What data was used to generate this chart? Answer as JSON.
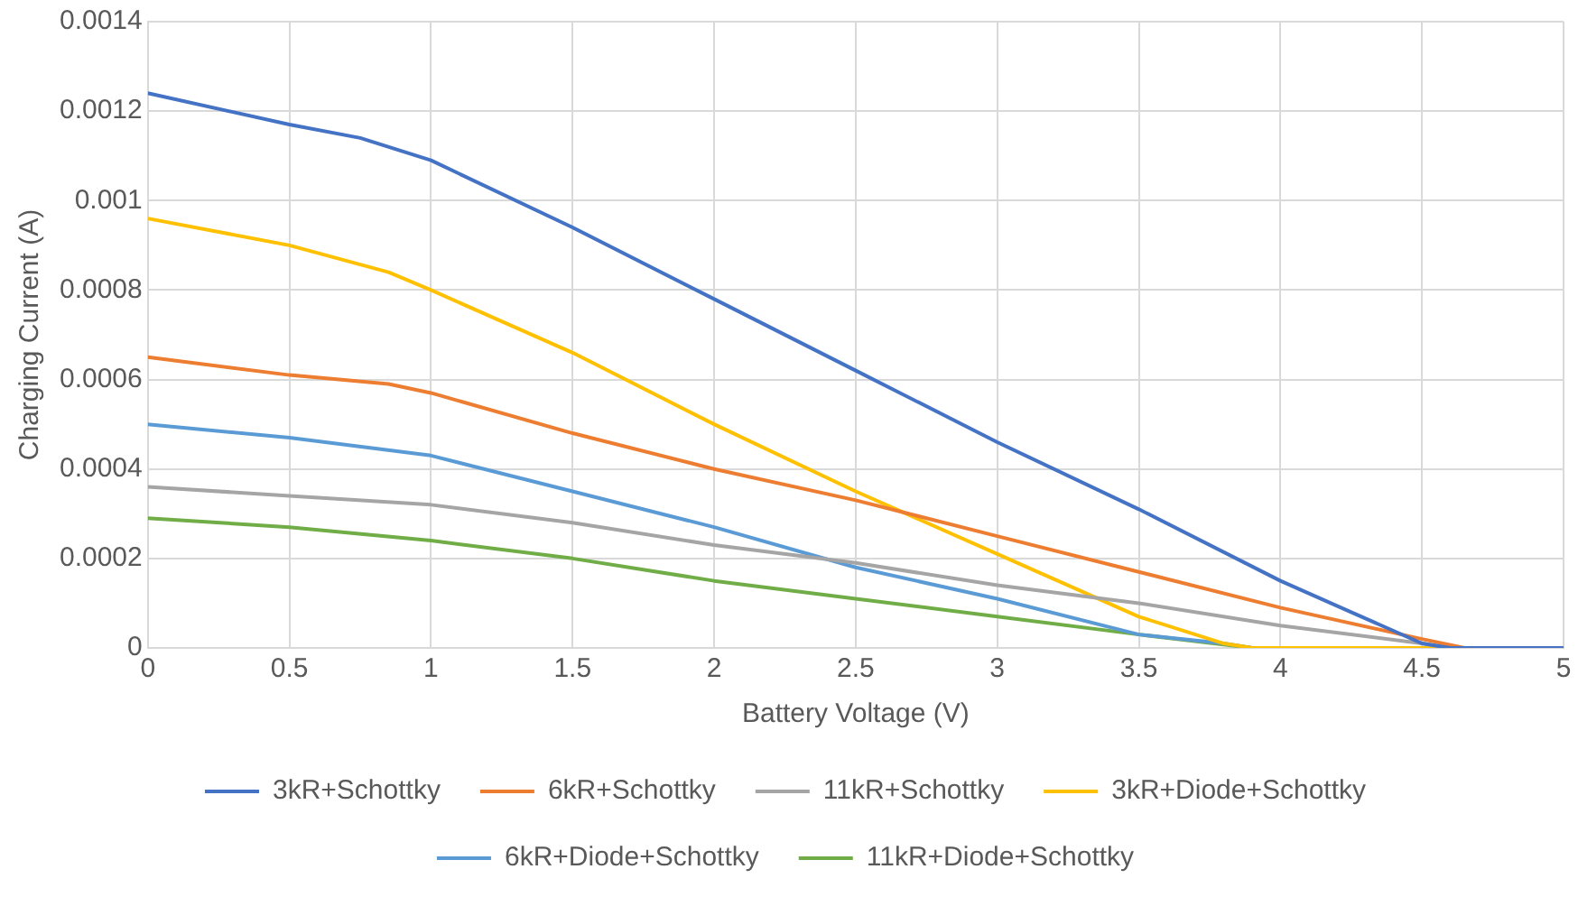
{
  "chart_data": {
    "type": "line",
    "xlabel": "Battery Voltage (V)",
    "ylabel": "Charging Current (A)",
    "xlim": [
      0,
      5
    ],
    "xticks": [
      0,
      0.5,
      1,
      1.5,
      2,
      2.5,
      3,
      3.5,
      4,
      4.5,
      5
    ],
    "ylim": [
      0,
      0.0014
    ],
    "yticks": [
      0,
      0.0002,
      0.0004,
      0.0006,
      0.0008,
      0.001,
      0.0012,
      0.0014
    ],
    "grid": true,
    "legend": "bottom",
    "marker": "none",
    "line_style": "solid",
    "series": [
      {
        "name": "3kR+Schottky",
        "color": "#4472c4",
        "x": [
          0,
          0.5,
          0.75,
          1,
          1.5,
          2,
          2.5,
          3,
          3.5,
          4,
          4.25,
          4.5,
          4.6,
          5
        ],
        "values": [
          0.00124,
          0.00117,
          0.00114,
          0.00109,
          0.00094,
          0.00078,
          0.00062,
          0.00046,
          0.00031,
          0.00015,
          8e-05,
          1e-05,
          0,
          0
        ]
      },
      {
        "name": "6kR+Schottky",
        "color": "#ed7d31",
        "x": [
          0,
          0.5,
          0.85,
          1,
          1.5,
          2,
          2.5,
          3,
          3.5,
          4,
          4.5,
          4.65,
          5
        ],
        "values": [
          0.00065,
          0.00061,
          0.00059,
          0.00057,
          0.00048,
          0.0004,
          0.00033,
          0.00025,
          0.00017,
          9e-05,
          2e-05,
          0,
          0
        ]
      },
      {
        "name": "11kR+Schottky",
        "color": "#a5a5a5",
        "x": [
          0,
          0.5,
          1,
          1.5,
          2,
          2.5,
          3,
          3.5,
          4,
          4.5,
          4.6,
          5
        ],
        "values": [
          0.00036,
          0.00034,
          0.00032,
          0.00028,
          0.00023,
          0.00019,
          0.00014,
          0.0001,
          5e-05,
          1e-05,
          0,
          0
        ]
      },
      {
        "name": "3kR+Diode+Schottky",
        "color": "#ffc000",
        "x": [
          0,
          0.5,
          0.85,
          1,
          1.5,
          2,
          2.5,
          3,
          3.5,
          3.8,
          3.9,
          5
        ],
        "values": [
          0.00096,
          0.0009,
          0.00084,
          0.0008,
          0.00066,
          0.0005,
          0.00035,
          0.00021,
          7e-05,
          1e-05,
          0,
          0
        ]
      },
      {
        "name": "6kR+Diode+Schottky",
        "color": "#5b9bd5",
        "x": [
          0,
          0.5,
          1,
          1.5,
          2,
          2.5,
          3,
          3.5,
          3.8,
          3.9,
          5
        ],
        "values": [
          0.0005,
          0.00047,
          0.00043,
          0.00035,
          0.00027,
          0.00018,
          0.00011,
          3e-05,
          1e-05,
          0,
          0
        ]
      },
      {
        "name": "11kR+Diode+Schottky",
        "color": "#70ad47",
        "x": [
          0,
          0.5,
          1,
          1.5,
          2,
          2.5,
          3,
          3.5,
          3.9,
          5
        ],
        "values": [
          0.00029,
          0.00027,
          0.00024,
          0.0002,
          0.00015,
          0.00011,
          7e-05,
          3e-05,
          0,
          0
        ]
      }
    ]
  }
}
